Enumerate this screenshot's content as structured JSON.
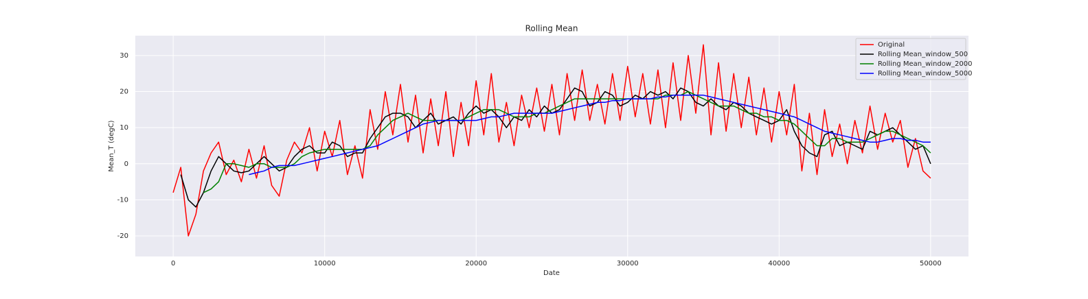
{
  "chart_data": {
    "type": "line",
    "title": "Rolling Mean",
    "x_label": "Date",
    "y_label": "Mean_T (degC)",
    "x": [
      0,
      500,
      1000,
      1500,
      2000,
      2500,
      3000,
      3500,
      4000,
      4500,
      5000,
      5500,
      6000,
      6500,
      7000,
      7500,
      8000,
      8500,
      9000,
      9500,
      10000,
      10500,
      11000,
      11500,
      12000,
      12500,
      13000,
      13500,
      14000,
      14500,
      15000,
      15500,
      16000,
      16500,
      17000,
      17500,
      18000,
      18500,
      19000,
      19500,
      20000,
      20500,
      21000,
      21500,
      22000,
      22500,
      23000,
      23500,
      24000,
      24500,
      25000,
      25500,
      26000,
      26500,
      27000,
      27500,
      28000,
      28500,
      29000,
      29500,
      30000,
      30500,
      31000,
      31500,
      32000,
      32500,
      33000,
      33500,
      34000,
      34500,
      35000,
      35500,
      36000,
      36500,
      37000,
      37500,
      38000,
      38500,
      39000,
      39500,
      40000,
      40500,
      41000,
      41500,
      42000,
      42500,
      43000,
      43500,
      44000,
      44500,
      45000,
      45500,
      46000,
      46500,
      47000,
      47500,
      48000,
      48500,
      49000,
      49500,
      50000
    ],
    "series": [
      {
        "name": "Original",
        "color": "#ff0000",
        "values": [
          -8,
          -1,
          -20,
          -14,
          -2,
          3,
          6,
          -3,
          1,
          -5,
          4,
          -4,
          5,
          -6,
          -9,
          1,
          6,
          3,
          10,
          -2,
          9,
          2,
          12,
          -3,
          5,
          -4,
          15,
          4,
          20,
          8,
          22,
          6,
          19,
          3,
          18,
          5,
          20,
          2,
          17,
          5,
          23,
          8,
          25,
          6,
          17,
          5,
          19,
          10,
          21,
          9,
          22,
          8,
          25,
          12,
          26,
          12,
          22,
          11,
          25,
          12,
          27,
          13,
          25,
          11,
          26,
          10,
          28,
          12,
          30,
          14,
          33,
          8,
          28,
          9,
          25,
          10,
          24,
          8,
          21,
          6,
          20,
          8,
          22,
          -2,
          14,
          -3,
          15,
          2,
          11,
          0,
          12,
          3,
          16,
          4,
          14,
          6,
          12,
          -1,
          7,
          -2,
          -4
        ]
      },
      {
        "name": "Rolling Mean_window_500",
        "color": "#000000",
        "values": [
          null,
          -3,
          -10,
          -12,
          -8,
          -2,
          2,
          0,
          -2,
          -2.5,
          -2,
          0,
          2,
          0,
          -2,
          -1,
          2,
          4,
          5,
          3,
          3,
          6,
          5,
          2,
          3,
          3,
          7,
          10,
          13,
          14,
          14,
          13,
          10,
          12,
          14,
          11,
          12,
          13,
          11,
          14,
          16,
          14,
          15,
          13,
          10,
          13,
          12,
          15,
          13,
          16,
          14,
          15,
          18,
          21,
          20,
          16,
          17,
          20,
          19,
          16,
          17,
          19,
          18,
          20,
          19,
          20,
          18,
          21,
          20,
          17,
          16,
          18,
          16,
          15,
          17,
          16,
          14,
          13,
          12,
          11,
          12,
          15,
          9,
          5,
          3,
          2,
          8,
          9,
          5,
          6,
          5,
          4,
          9,
          8,
          9,
          10,
          8,
          6,
          4,
          5,
          0
        ]
      },
      {
        "name": "Rolling Mean_window_2000",
        "color": "#008000",
        "values": [
          null,
          null,
          null,
          null,
          -8,
          -7,
          -5,
          0,
          0,
          -0.5,
          -1,
          0,
          0,
          -1,
          -1,
          -1,
          0,
          2,
          3,
          3.5,
          4,
          4,
          4,
          4,
          4,
          4,
          5,
          8,
          10,
          12,
          13,
          14,
          13,
          12,
          12,
          12,
          12,
          12,
          12,
          13,
          14,
          15,
          15,
          15,
          14,
          13,
          13,
          13,
          14,
          14,
          15,
          16,
          17,
          18,
          18,
          18,
          18,
          18,
          18,
          18,
          18,
          18,
          18,
          18,
          18,
          19,
          19,
          19,
          20,
          19,
          18,
          17,
          16,
          16,
          16,
          15,
          14,
          14,
          13,
          13,
          12,
          12,
          11,
          9,
          7,
          5,
          5,
          7,
          7,
          6,
          6,
          6,
          7,
          8,
          9,
          9,
          8,
          7,
          6,
          5,
          3
        ]
      },
      {
        "name": "Rolling Mean_window_5000",
        "color": "#0000ff",
        "values": [
          null,
          null,
          null,
          null,
          null,
          null,
          null,
          null,
          null,
          null,
          -3,
          -2.5,
          -2,
          -1,
          -0.5,
          -0.5,
          -0.5,
          0,
          0.5,
          1,
          1.5,
          2,
          2.5,
          3,
          3.5,
          4,
          4.5,
          5,
          6,
          7,
          8,
          9,
          10,
          11,
          11.5,
          12,
          12,
          12,
          12,
          12,
          12,
          12.5,
          13,
          13,
          13.5,
          14,
          14,
          14,
          14,
          14,
          14,
          14.5,
          15,
          15.5,
          16,
          16.5,
          17,
          17,
          17.5,
          17.5,
          18,
          18,
          18,
          18,
          18.5,
          18.5,
          19,
          19,
          19,
          19,
          19,
          18.5,
          18,
          17.5,
          17,
          16.5,
          16,
          15.5,
          15,
          14.5,
          14,
          13.5,
          13,
          12,
          11,
          10,
          9,
          8.5,
          8,
          7.5,
          7,
          6.5,
          6,
          6,
          6.5,
          7,
          7,
          6.5,
          6.5,
          6,
          6
        ]
      }
    ],
    "xlim": [
      -2500,
      52500
    ],
    "ylim": [
      -25.7,
      35.5
    ],
    "xticks": [
      0,
      10000,
      20000,
      30000,
      40000,
      50000
    ],
    "yticks": [
      -20,
      -10,
      0,
      10,
      20,
      30
    ],
    "grid": true,
    "legend": "upper right"
  }
}
